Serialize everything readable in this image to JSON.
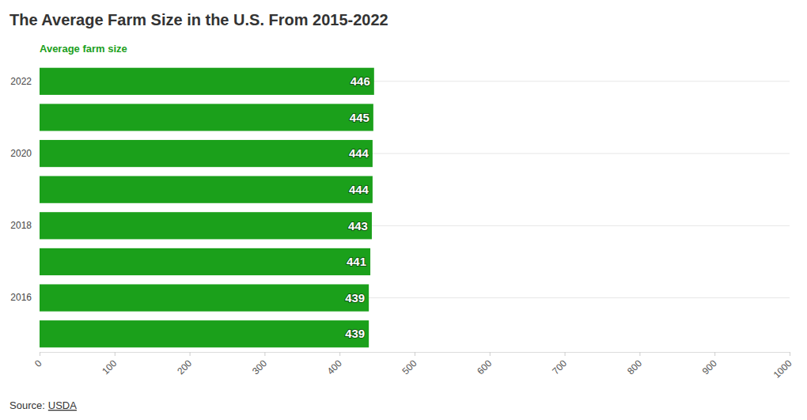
{
  "chart_data": {
    "type": "bar",
    "orientation": "horizontal",
    "title": "The Average Farm Size in the U.S. From 2015-2022",
    "subtitle": "Average farm size",
    "categories": [
      "2022",
      null,
      "2020",
      null,
      "2018",
      null,
      "2016",
      null
    ],
    "values": [
      446,
      445,
      444,
      444,
      443,
      441,
      439,
      439
    ],
    "color": "#1ba01b",
    "xlim": [
      0,
      1000
    ],
    "xticks": [
      0,
      100,
      200,
      300,
      400,
      500,
      600,
      700,
      800,
      900,
      1000
    ],
    "grid": true,
    "data_labels": true,
    "source": {
      "label": "Source:",
      "link": "USDA"
    }
  }
}
